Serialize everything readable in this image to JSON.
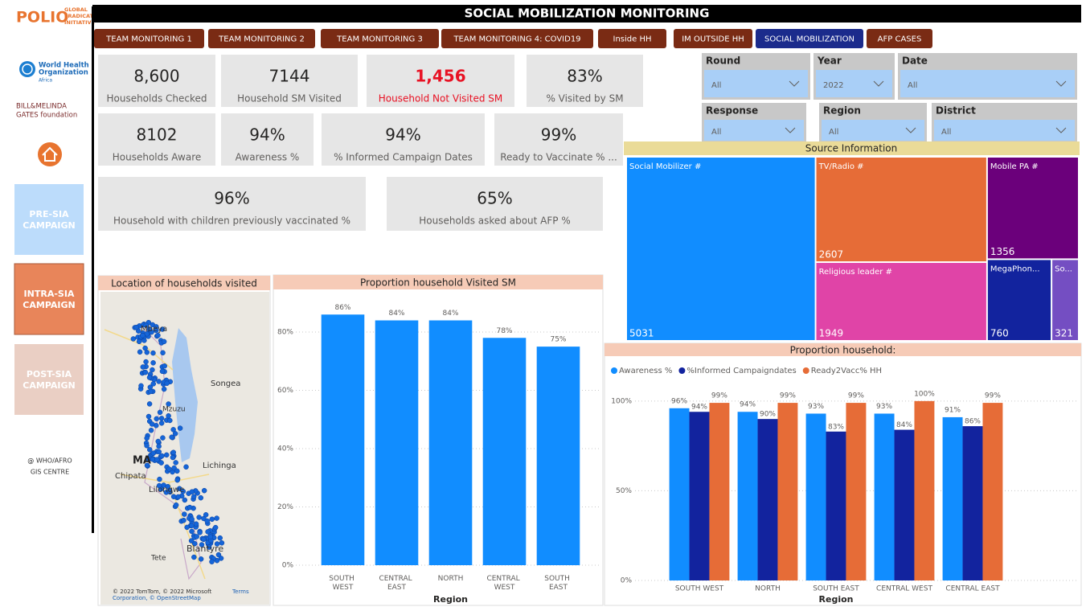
{
  "sidebar": {
    "polio_mark": "POLIO",
    "polio_lines": [
      "GLOBAL",
      "ERADICATION",
      "INITIATIVE"
    ],
    "who_lines": [
      "World Health",
      "Organization"
    ],
    "who_region": "Africa",
    "gates_lines": [
      "BILL&MELINDA",
      "GATES foundation"
    ],
    "buttons": [
      {
        "lines": [
          "PRE-SIA",
          "CAMPAIGN"
        ],
        "color": "#bcdcfb"
      },
      {
        "lines": [
          "INTRA-SIA",
          "CAMPAIGN"
        ],
        "color": "#e8855a"
      },
      {
        "lines": [
          "POST-SIA",
          "CAMPAIGN"
        ],
        "color": "#eacfc4"
      }
    ],
    "credit": [
      "@ WHO/AFRO",
      "GIS CENTRE"
    ]
  },
  "header": {
    "title": "SOCIAL MOBILIZATION MONITORING"
  },
  "tabs": [
    {
      "label": "TEAM MONITORING 1",
      "active": false
    },
    {
      "label": "TEAM MONITORING 2",
      "active": false
    },
    {
      "label": "TEAM MONITORING 3",
      "active": false
    },
    {
      "label": "TEAM MONITORING 4: COVID19",
      "active": false
    },
    {
      "label": "Inside HH",
      "active": false
    },
    {
      "label": "IM OUTSIDE HH",
      "active": false
    },
    {
      "label": "SOCIAL MOBILIZATION",
      "active": true
    },
    {
      "label": "AFP CASES",
      "active": false
    }
  ],
  "kpis": [
    {
      "value": "8,600",
      "label": "Households Checked",
      "alert": false
    },
    {
      "value": "7144",
      "label": "Household SM Visited",
      "alert": false
    },
    {
      "value": "1,456",
      "label": "Household Not Visited SM",
      "alert": true
    },
    {
      "value": "83%",
      "label": "% Visited by SM",
      "alert": false
    },
    {
      "value": "8102",
      "label": "Households Aware",
      "alert": false
    },
    {
      "value": "94%",
      "label": "Awareness %",
      "alert": false
    },
    {
      "value": "94%",
      "label": "% Informed Campaign  Dates",
      "alert": false
    },
    {
      "value": "99%",
      "label": "Ready to Vaccinate % ...",
      "alert": false
    },
    {
      "value": "96%",
      "label": "Household with children previously vaccinated %",
      "alert": false
    },
    {
      "value": "65%",
      "label": "Households asked about AFP %",
      "alert": false
    }
  ],
  "filters": [
    {
      "label": "Round",
      "value": "All"
    },
    {
      "label": "Year",
      "value": "2022"
    },
    {
      "label": "Date",
      "value": "All"
    },
    {
      "label": "Response",
      "value": "All"
    },
    {
      "label": "Region",
      "value": "All"
    },
    {
      "label": "District",
      "value": "All"
    }
  ],
  "map": {
    "title": "Location of households visited",
    "places": [
      "Mbeya",
      "Songea",
      "Mzuzu",
      "MA",
      "Lichinga",
      "Chipata",
      "Lilongwe",
      "Blantyre",
      "Tete"
    ],
    "attribution": [
      "© 2022 TomTom, © 2022 Microsoft",
      "Terms",
      "Corporation, © OpenStreetMap"
    ]
  },
  "chart_data": [
    {
      "type": "treemap",
      "title": "Source Information",
      "categories": [
        "Social Mobilizer #",
        "TV/Radio #",
        "Mobile PA #",
        "Religious leader #",
        "MegaPhon...",
        "So..."
      ],
      "values": [
        5031,
        2607,
        1356,
        1949,
        760,
        321
      ],
      "colors": [
        "#118dff",
        "#e66c37",
        "#6b007b",
        "#e044a7",
        "#12239e",
        "#744ec2"
      ]
    },
    {
      "type": "bar",
      "title": "Proportion household Visited SM",
      "x_label": "Region",
      "categories": [
        "SOUTH WEST",
        "CENTRAL EAST",
        "NORTH",
        "CENTRAL WEST",
        "SOUTH EAST"
      ],
      "values": [
        86,
        84,
        84,
        78,
        75
      ],
      "value_labels": [
        "86%",
        "84%",
        "84%",
        "78%",
        "75%"
      ],
      "color": "#118dff",
      "ylim": [
        0,
        90
      ],
      "yticks": [
        {
          "value": 0,
          "label": "0%"
        },
        {
          "value": 20,
          "label": "20%"
        },
        {
          "value": 40,
          "label": "40%"
        },
        {
          "value": 60,
          "label": "60%"
        },
        {
          "value": 80,
          "label": "80%"
        }
      ],
      "grid": true
    },
    {
      "type": "grouped_bar",
      "title": "Proportion household:",
      "x_label": "Region",
      "categories": [
        "SOUTH WEST",
        "NORTH",
        "SOUTH EAST",
        "CENTRAL WEST",
        "CENTRAL EAST"
      ],
      "series": [
        {
          "name": "Awareness %",
          "color": "#118dff",
          "values": [
            96,
            94,
            93,
            93,
            91
          ],
          "value_labels": [
            "96%",
            "94%",
            "93%",
            "93%",
            "91%"
          ]
        },
        {
          "name": "%Informed Campaigndates",
          "color": "#12239e",
          "values": [
            94,
            90,
            83,
            84,
            86
          ],
          "value_labels": [
            "94%",
            "90%",
            "83%",
            "84%",
            "86%"
          ]
        },
        {
          "name": "Ready2Vacc% HH",
          "color": "#e66c37",
          "values": [
            99,
            99,
            99,
            100,
            99
          ],
          "value_labels": [
            "99%",
            "99%",
            "99%",
            "100%",
            "99%"
          ]
        }
      ],
      "ylim": [
        0,
        108
      ],
      "yticks": [
        {
          "value": 0,
          "label": "0%"
        },
        {
          "value": 50,
          "label": "50%"
        },
        {
          "value": 100,
          "label": "100%"
        }
      ],
      "grid": true,
      "legend": "top-left"
    }
  ]
}
